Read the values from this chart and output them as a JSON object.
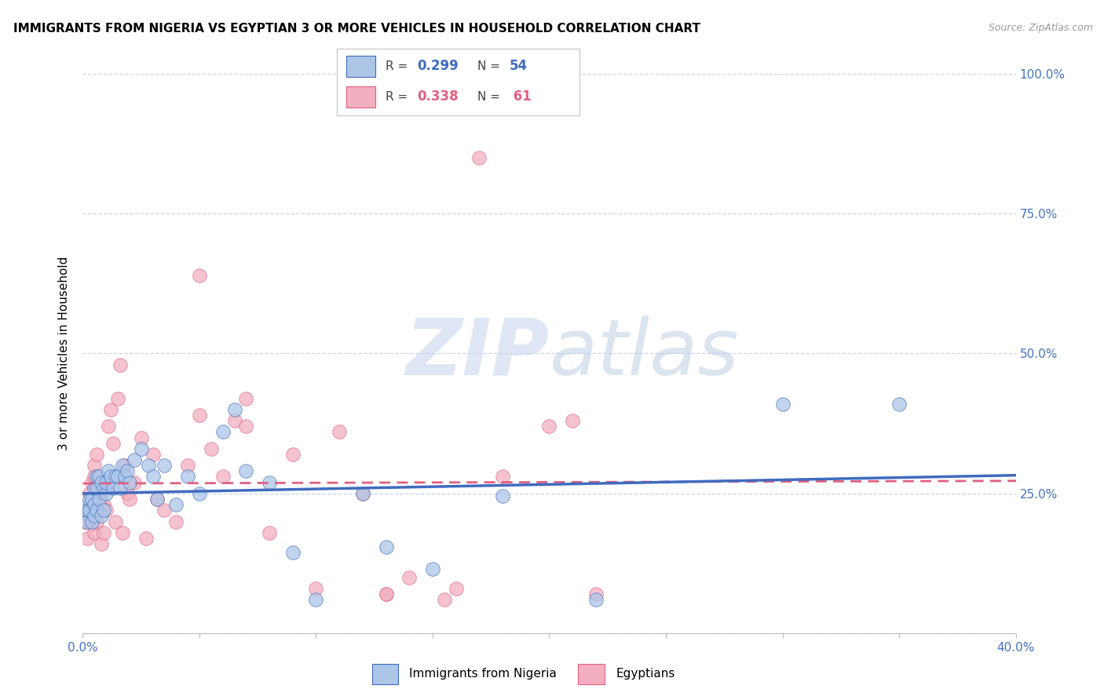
{
  "title": "IMMIGRANTS FROM NIGERIA VS EGYPTIAN 3 OR MORE VEHICLES IN HOUSEHOLD CORRELATION CHART",
  "source": "Source: ZipAtlas.com",
  "ylabel": "3 or more Vehicles in Household",
  "xlim": [
    0.0,
    0.4
  ],
  "ylim": [
    0.0,
    1.0
  ],
  "xticks": [
    0.0,
    0.05,
    0.1,
    0.15,
    0.2,
    0.25,
    0.3,
    0.35,
    0.4
  ],
  "yticks": [
    0.0,
    0.25,
    0.5,
    0.75,
    1.0
  ],
  "color_nigeria": "#adc6e8",
  "color_egypt": "#f2afc0",
  "color_nigeria_line": "#3f6bbf",
  "color_egypt_line": "#e06080",
  "legend_label_nigeria": "Immigrants from Nigeria",
  "legend_label_egypt": "Egyptians",
  "watermark_zip": "ZIP",
  "watermark_atlas": "atlas",
  "nigeria_x": [
    0.001,
    0.001,
    0.002,
    0.002,
    0.003,
    0.003,
    0.004,
    0.004,
    0.005,
    0.005,
    0.005,
    0.006,
    0.006,
    0.006,
    0.007,
    0.007,
    0.008,
    0.008,
    0.009,
    0.009,
    0.01,
    0.01,
    0.011,
    0.012,
    0.013,
    0.014,
    0.015,
    0.016,
    0.017,
    0.018,
    0.019,
    0.02,
    0.022,
    0.025,
    0.028,
    0.03,
    0.032,
    0.035,
    0.04,
    0.045,
    0.05,
    0.06,
    0.065,
    0.07,
    0.08,
    0.09,
    0.1,
    0.12,
    0.13,
    0.15,
    0.18,
    0.22,
    0.3,
    0.35
  ],
  "nigeria_y": [
    0.215,
    0.225,
    0.2,
    0.22,
    0.22,
    0.24,
    0.24,
    0.2,
    0.23,
    0.26,
    0.21,
    0.26,
    0.28,
    0.22,
    0.28,
    0.24,
    0.27,
    0.21,
    0.26,
    0.22,
    0.25,
    0.27,
    0.29,
    0.28,
    0.26,
    0.28,
    0.28,
    0.26,
    0.3,
    0.28,
    0.29,
    0.27,
    0.31,
    0.33,
    0.3,
    0.28,
    0.24,
    0.3,
    0.23,
    0.28,
    0.25,
    0.36,
    0.4,
    0.29,
    0.27,
    0.145,
    0.06,
    0.25,
    0.155,
    0.115,
    0.245,
    0.06,
    0.41,
    0.41
  ],
  "egypt_x": [
    0.001,
    0.001,
    0.002,
    0.002,
    0.003,
    0.003,
    0.004,
    0.004,
    0.005,
    0.005,
    0.005,
    0.006,
    0.006,
    0.007,
    0.007,
    0.008,
    0.008,
    0.009,
    0.009,
    0.01,
    0.01,
    0.011,
    0.012,
    0.013,
    0.014,
    0.015,
    0.016,
    0.017,
    0.018,
    0.019,
    0.02,
    0.022,
    0.025,
    0.027,
    0.03,
    0.032,
    0.035,
    0.04,
    0.045,
    0.05,
    0.055,
    0.06,
    0.07,
    0.08,
    0.09,
    0.1,
    0.11,
    0.12,
    0.13,
    0.14,
    0.16,
    0.17,
    0.18,
    0.2,
    0.21,
    0.22,
    0.05,
    0.065,
    0.07,
    0.13,
    0.155
  ],
  "egypt_y": [
    0.2,
    0.215,
    0.17,
    0.22,
    0.21,
    0.25,
    0.27,
    0.195,
    0.28,
    0.3,
    0.18,
    0.32,
    0.2,
    0.27,
    0.22,
    0.16,
    0.25,
    0.18,
    0.23,
    0.26,
    0.22,
    0.37,
    0.4,
    0.34,
    0.2,
    0.42,
    0.48,
    0.18,
    0.3,
    0.25,
    0.24,
    0.27,
    0.35,
    0.17,
    0.32,
    0.24,
    0.22,
    0.2,
    0.3,
    0.39,
    0.33,
    0.28,
    0.42,
    0.18,
    0.32,
    0.08,
    0.36,
    0.25,
    0.07,
    0.1,
    0.08,
    0.85,
    0.28,
    0.37,
    0.38,
    0.07,
    0.64,
    0.38,
    0.37,
    0.07,
    0.06
  ]
}
